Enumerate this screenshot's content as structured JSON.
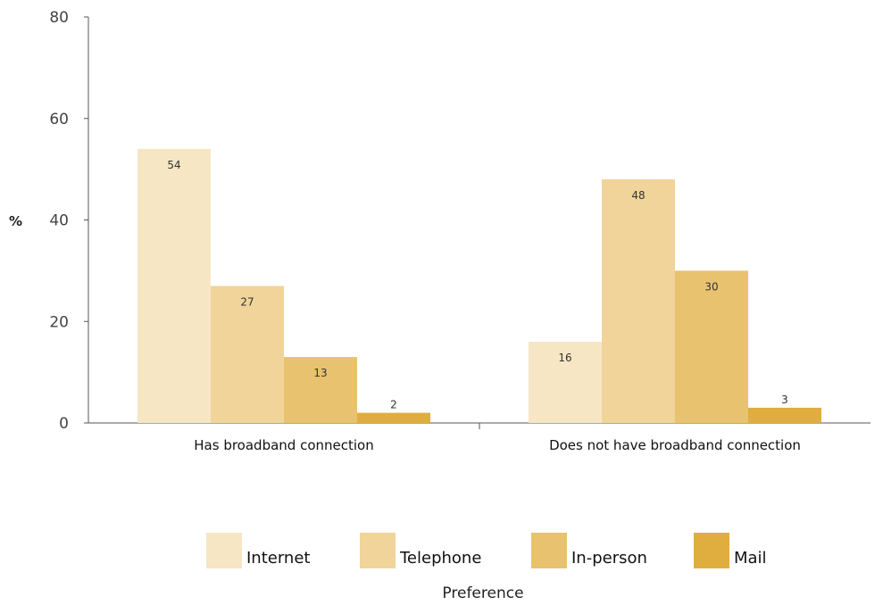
{
  "chart_data": {
    "type": "bar",
    "categories": [
      "Has broadband connection",
      "Does not have broadband connection"
    ],
    "series": [
      {
        "name": "Internet",
        "values": [
          54,
          16
        ],
        "color": "#f7e6c4"
      },
      {
        "name": "Telephone",
        "values": [
          27,
          48
        ],
        "color": "#f0d49a"
      },
      {
        "name": "In-person",
        "values": [
          13,
          30
        ],
        "color": "#e8c26e"
      },
      {
        "name": "Mail",
        "values": [
          2,
          3
        ],
        "color": "#dfae3f"
      }
    ],
    "ylabel": "%",
    "ylim": [
      0,
      80
    ],
    "yticks": [
      0,
      20,
      40,
      60,
      80
    ],
    "legend_title": "Preference",
    "legend_position": "bottom",
    "grid": false
  }
}
